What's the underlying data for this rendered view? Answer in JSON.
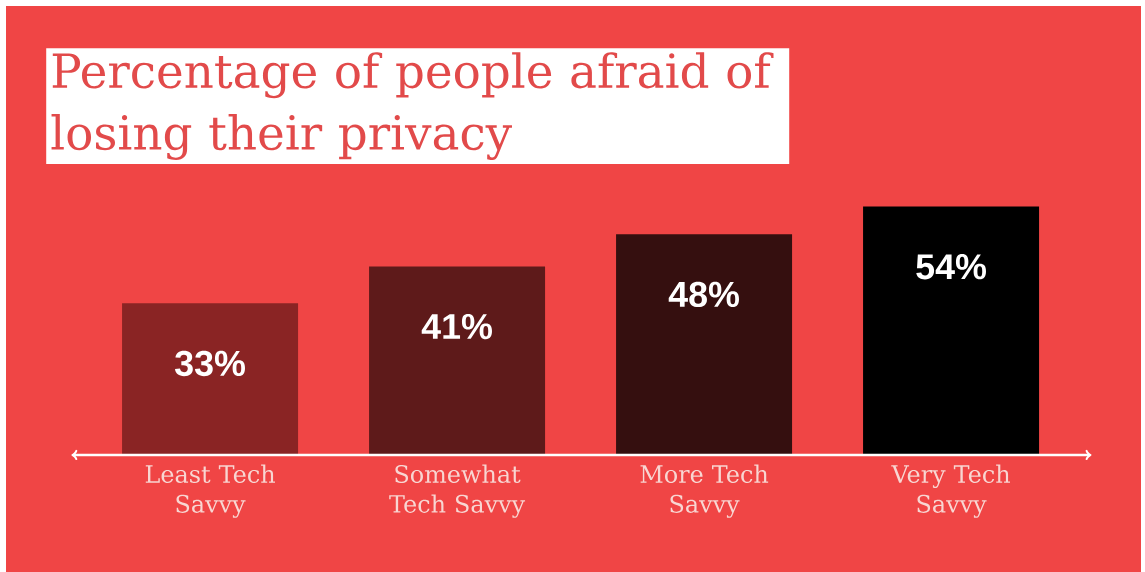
{
  "chart_data": {
    "type": "bar",
    "title": "Percentage of people afraid of losing their privacy",
    "categories": [
      "Least Tech Savvy",
      "Somewhat Tech Savvy",
      "More Tech Savvy",
      "Very Tech Savvy"
    ],
    "values": [
      33,
      41,
      48,
      54
    ],
    "colors": [
      "#8a2424",
      "#5e1a1a",
      "#350f0f",
      "#000000"
    ],
    "value_labels": [
      "33%",
      "41%",
      "48%",
      "54%"
    ]
  }
}
